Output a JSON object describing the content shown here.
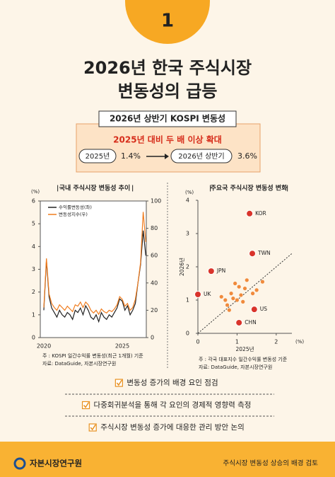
{
  "badge": "1",
  "header": {
    "title_lines": [
      "2026년 한국 주식시장",
      "변동성의 급등"
    ]
  },
  "summary": {
    "title": "2026년 상반기 KOSPI 변동성",
    "headline": "2025년 대비 두 배 이상 확대",
    "items": [
      {
        "label": "2025년",
        "value": "1.4%"
      },
      {
        "label": "2026년 상반기",
        "value": "3.6%"
      }
    ]
  },
  "chart_data": [
    {
      "type": "line",
      "title": "국내 주식시장 변동성 추이",
      "y_unit": "(%)",
      "categories": [
        "2020",
        null,
        null,
        null,
        null,
        null,
        null,
        null,
        null,
        null,
        null,
        null,
        null,
        null,
        null,
        null,
        null,
        null,
        null,
        null,
        null,
        null,
        null,
        null,
        null,
        null,
        null,
        null,
        null,
        null,
        "2025",
        null,
        null,
        null,
        null,
        null,
        null,
        null,
        null,
        null
      ],
      "series": [
        {
          "name": "수익률변동성(좌)",
          "color": "#222222",
          "values": [
            1.2,
            3.4,
            1.8,
            1.3,
            1.1,
            0.9,
            1.2,
            1.0,
            0.9,
            1.1,
            1.0,
            0.8,
            1.2,
            1.1,
            1.3,
            1.0,
            1.4,
            1.2,
            0.9,
            0.8,
            1.0,
            0.7,
            1.1,
            0.9,
            0.8,
            1.0,
            0.9,
            1.1,
            1.3,
            1.7,
            1.6,
            1.2,
            1.4,
            1.0,
            1.2,
            1.5,
            2.4,
            3.2,
            4.7,
            3.6
          ]
        },
        {
          "name": "변동성지수(우)",
          "color": "#f07c1e",
          "axis": "y2",
          "values": [
            22,
            58,
            32,
            25,
            22,
            20,
            24,
            22,
            20,
            23,
            21,
            19,
            24,
            23,
            26,
            22,
            26,
            24,
            20,
            18,
            20,
            17,
            21,
            19,
            18,
            20,
            19,
            21,
            24,
            30,
            28,
            23,
            25,
            20,
            22,
            28,
            40,
            55,
            92,
            70
          ]
        }
      ],
      "ylim": [
        0,
        6
      ],
      "yticks": [
        0,
        1,
        2,
        3,
        4,
        5,
        6
      ],
      "y2lim": [
        0,
        100
      ],
      "y2ticks": [
        0,
        20,
        40,
        60,
        80,
        100
      ],
      "notes": [
        "주    : KOSPI 일간수익률 변동성(최근 1개월) 기준",
        "자료: DataGuide, 자본시장연구원"
      ]
    },
    {
      "type": "scatter",
      "title": "주요국 주식시장 변동성 변화",
      "x_unit": "(%)",
      "y_unit": "(%)",
      "xlabel": "2025년",
      "ylabel": "2026년",
      "color": "#f08a3c",
      "diagonal": true,
      "x": [
        1.32,
        1.39,
        0.34,
        0.0,
        1.44,
        1.05,
        0.95,
        1.05,
        1.2,
        0.85,
        0.9,
        1.0,
        1.1,
        0.7,
        0.75,
        0.6,
        1.25,
        1.5,
        1.65,
        0.8,
        1.15,
        1.4
      ],
      "y": [
        3.6,
        2.4,
        1.87,
        1.17,
        0.72,
        0.32,
        1.5,
        1.4,
        1.35,
        1.2,
        1.05,
        1.0,
        1.15,
        1.0,
        0.85,
        1.1,
        1.6,
        1.3,
        1.55,
        0.7,
        0.95,
        1.2
      ],
      "labels": [
        "KOR",
        "TWN",
        "JPN",
        "UK",
        "US",
        "CHN",
        null,
        null,
        null,
        null,
        null,
        null,
        null,
        null,
        null,
        null,
        null,
        null,
        null,
        null,
        null,
        null
      ],
      "xlim": [
        0,
        2.4
      ],
      "xticks": [
        0,
        1,
        2
      ],
      "ylim": [
        0,
        4
      ],
      "yticks": [
        0,
        1,
        2,
        3,
        4
      ],
      "notes": [
        "주    : 각국 대표지수 일간수익률 변동성 기준",
        "자료: DataGuide, 자본시장연구원"
      ]
    }
  ],
  "checklist": [
    "변동성 증가의 배경 요인 점검",
    "다중회귀분석을 통해 각 요인의 경제적 영향력 측정",
    "주식시장 변동성 증가에 대응한 관리 방안 논의"
  ],
  "footer": {
    "org": "자본시장연구원",
    "topic": "주식시장 변동성 상승의 배경 검토"
  }
}
